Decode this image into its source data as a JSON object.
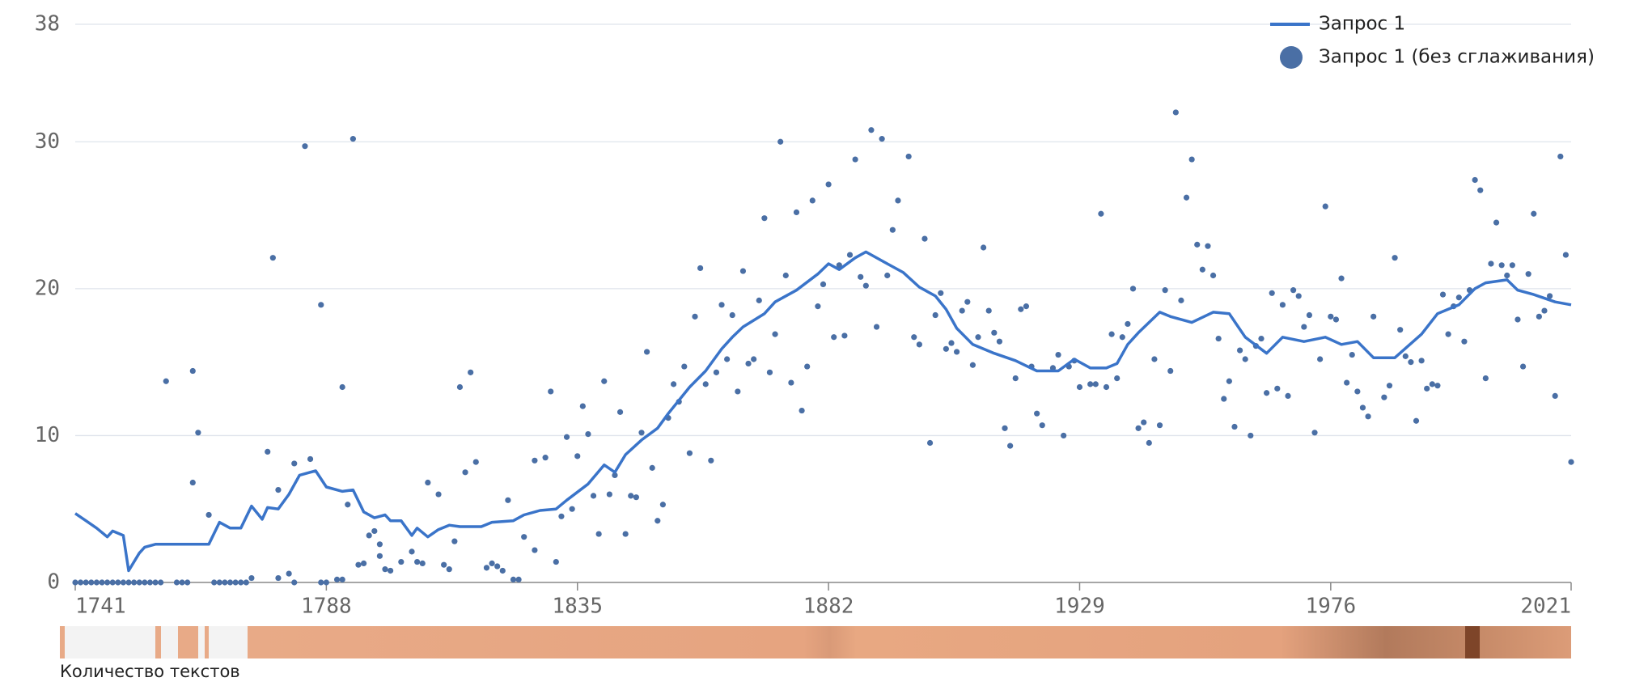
{
  "chart_data": {
    "type": "line",
    "xlim": [
      1741,
      2021
    ],
    "xticks": [
      1741,
      1788,
      1835,
      1882,
      1929,
      1976,
      2021
    ],
    "ylim": [
      0,
      38
    ],
    "yticks": [
      0,
      10,
      20,
      30,
      38
    ],
    "grid": true,
    "legend": "top-right",
    "strip_label": "Количество текстов",
    "series": [
      {
        "name": "Запрос 1",
        "type": "line",
        "color": "#3a74c9",
        "x": [
          1741,
          1743,
          1745,
          1747,
          1748,
          1750,
          1751,
          1753,
          1754,
          1756,
          1760,
          1766,
          1768,
          1770,
          1772,
          1774,
          1776,
          1777,
          1779,
          1781,
          1783,
          1786,
          1788,
          1791,
          1793,
          1795,
          1797,
          1799,
          1800,
          1802,
          1804,
          1805,
          1807,
          1809,
          1811,
          1813,
          1817,
          1819,
          1823,
          1825,
          1828,
          1831,
          1833,
          1837,
          1840,
          1842,
          1844,
          1847,
          1850,
          1852,
          1856,
          1859,
          1862,
          1864,
          1866,
          1870,
          1872,
          1876,
          1880,
          1882,
          1884,
          1887,
          1889,
          1893,
          1896,
          1899,
          1902,
          1904,
          1906,
          1909,
          1913,
          1917,
          1921,
          1925,
          1928,
          1931,
          1934,
          1936,
          1938,
          1940,
          1944,
          1946,
          1950,
          1954,
          1957,
          1960,
          1964,
          1967,
          1971,
          1975,
          1978,
          1981,
          1984,
          1988,
          1993,
          1996,
          2000,
          2003,
          2005,
          2009,
          2011,
          2014,
          2018,
          2021
        ],
        "values": [
          4.7,
          4.2,
          3.7,
          3.1,
          3.5,
          3.2,
          0.8,
          2.0,
          2.4,
          2.6,
          2.6,
          2.6,
          4.1,
          3.7,
          3.7,
          5.2,
          4.3,
          5.1,
          5.0,
          6.0,
          7.3,
          7.6,
          6.5,
          6.2,
          6.3,
          4.8,
          4.4,
          4.6,
          4.2,
          4.2,
          3.2,
          3.7,
          3.1,
          3.6,
          3.9,
          3.8,
          3.8,
          4.1,
          4.2,
          4.6,
          4.9,
          5.0,
          5.6,
          6.7,
          8.0,
          7.5,
          8.7,
          9.7,
          10.5,
          11.5,
          13.3,
          14.4,
          15.9,
          16.7,
          17.4,
          18.3,
          19.1,
          19.9,
          21.0,
          21.7,
          21.3,
          22.1,
          22.5,
          21.7,
          21.1,
          20.1,
          19.5,
          18.6,
          17.3,
          16.2,
          15.6,
          15.1,
          14.4,
          14.4,
          15.2,
          14.6,
          14.6,
          14.9,
          16.2,
          17.0,
          18.4,
          18.1,
          17.7,
          18.4,
          18.3,
          16.7,
          15.6,
          16.7,
          16.4,
          16.7,
          16.2,
          16.4,
          15.3,
          15.3,
          16.9,
          18.3,
          18.9,
          20.0,
          20.4,
          20.6,
          19.9,
          19.6,
          19.1,
          18.9
        ]
      },
      {
        "name": "Запрос 1 (без сглаживания)",
        "type": "scatter",
        "color": "#4a6fa5",
        "x": [
          1741,
          1742,
          1743,
          1744,
          1745,
          1746,
          1747,
          1748,
          1749,
          1750,
          1751,
          1752,
          1753,
          1754,
          1755,
          1756,
          1757,
          1758,
          1760,
          1761,
          1762,
          1763,
          1763,
          1764,
          1766,
          1767,
          1768,
          1769,
          1770,
          1771,
          1772,
          1773,
          1774,
          1777,
          1778,
          1779,
          1779,
          1781,
          1782,
          1782,
          1784,
          1785,
          1787,
          1787,
          1788,
          1790,
          1791,
          1791,
          1792,
          1793,
          1794,
          1795,
          1796,
          1797,
          1798,
          1798,
          1799,
          1800,
          1802,
          1804,
          1805,
          1806,
          1807,
          1809,
          1810,
          1811,
          1812,
          1813,
          1814,
          1815,
          1816,
          1818,
          1819,
          1820,
          1821,
          1822,
          1823,
          1824,
          1825,
          1827,
          1827,
          1829,
          1830,
          1831,
          1832,
          1833,
          1834,
          1835,
          1836,
          1837,
          1838,
          1839,
          1840,
          1841,
          1842,
          1843,
          1844,
          1845,
          1846,
          1847,
          1848,
          1849,
          1850,
          1851,
          1852,
          1853,
          1854,
          1855,
          1856,
          1857,
          1858,
          1859,
          1860,
          1861,
          1862,
          1863,
          1864,
          1865,
          1866,
          1867,
          1868,
          1869,
          1870,
          1871,
          1872,
          1873,
          1874,
          1875,
          1876,
          1877,
          1878,
          1879,
          1880,
          1881,
          1882,
          1883,
          1884,
          1885,
          1886,
          1887,
          1888,
          1889,
          1890,
          1891,
          1892,
          1893,
          1894,
          1895,
          1897,
          1898,
          1899,
          1900,
          1901,
          1902,
          1903,
          1904,
          1905,
          1906,
          1907,
          1908,
          1909,
          1910,
          1911,
          1912,
          1913,
          1914,
          1915,
          1916,
          1917,
          1918,
          1919,
          1920,
          1921,
          1922,
          1924,
          1925,
          1926,
          1927,
          1928,
          1929,
          1931,
          1932,
          1933,
          1934,
          1935,
          1936,
          1937,
          1938,
          1939,
          1940,
          1941,
          1942,
          1943,
          1944,
          1945,
          1946,
          1947,
          1948,
          1949,
          1950,
          1951,
          1952,
          1953,
          1954,
          1955,
          1956,
          1957,
          1958,
          1959,
          1960,
          1961,
          1962,
          1963,
          1964,
          1965,
          1966,
          1967,
          1968,
          1969,
          1970,
          1971,
          1972,
          1973,
          1974,
          1975,
          1976,
          1977,
          1978,
          1979,
          1980,
          1981,
          1982,
          1983,
          1984,
          1986,
          1987,
          1988,
          1989,
          1990,
          1991,
          1992,
          1993,
          1994,
          1995,
          1996,
          1997,
          1998,
          1999,
          2000,
          2001,
          2002,
          2003,
          2004,
          2005,
          2006,
          2007,
          2008,
          2009,
          2010,
          2011,
          2012,
          2013,
          2014,
          2015,
          2016,
          2017,
          2018,
          2019,
          2020,
          2021
        ],
        "values": [
          0,
          0,
          0,
          0,
          0,
          0,
          0,
          0,
          0,
          0,
          0,
          0,
          0,
          0,
          0,
          0,
          0,
          13.7,
          0,
          0,
          0,
          6.8,
          14.4,
          10.2,
          4.6,
          0,
          0,
          0,
          0,
          0,
          0,
          0,
          0.3,
          8.9,
          22.1,
          0.3,
          6.3,
          0.6,
          0,
          8.1,
          29.7,
          8.4,
          0,
          18.9,
          0,
          0.2,
          13.3,
          0.2,
          5.3,
          30.2,
          1.2,
          1.3,
          3.2,
          3.5,
          2.6,
          1.8,
          0.9,
          0.8,
          1.4,
          2.1,
          1.4,
          1.3,
          6.8,
          6.0,
          1.2,
          0.9,
          2.8,
          13.3,
          7.5,
          14.3,
          8.2,
          1.0,
          1.3,
          1.1,
          0.8,
          5.6,
          0.2,
          0.2,
          3.1,
          2.2,
          8.3,
          8.5,
          13.0,
          1.4,
          4.5,
          9.9,
          5.0,
          8.6,
          12.0,
          10.1,
          5.9,
          3.3,
          13.7,
          6.0,
          7.3,
          11.6,
          3.3,
          5.9,
          5.8,
          10.2,
          15.7,
          7.8,
          4.2,
          5.3,
          11.2,
          13.5,
          12.3,
          14.7,
          8.8,
          18.1,
          21.4,
          13.5,
          8.3,
          14.3,
          18.9,
          15.2,
          18.2,
          13.0,
          21.2,
          14.9,
          15.2,
          19.2,
          24.8,
          14.3,
          16.9,
          30.0,
          20.9,
          13.6,
          25.2,
          11.7,
          14.7,
          26.0,
          18.8,
          20.3,
          27.1,
          16.7,
          21.6,
          16.8,
          22.3,
          28.8,
          20.8,
          20.2,
          30.8,
          17.4,
          30.2,
          20.9,
          24.0,
          26.0,
          29.0,
          16.7,
          16.2,
          23.4,
          9.5,
          18.2,
          19.7,
          15.9,
          16.3,
          15.7,
          18.5,
          19.1,
          14.8,
          16.7,
          22.8,
          18.5,
          17.0,
          16.4,
          10.5,
          9.3,
          13.9,
          18.6,
          18.8,
          14.7,
          11.5,
          10.7,
          14.6,
          15.5,
          10.0,
          14.7,
          15.1,
          13.3,
          13.5,
          13.5,
          25.1,
          13.3,
          16.9,
          13.9,
          16.7,
          17.6,
          20.0,
          10.5,
          10.9,
          9.5,
          15.2,
          10.7,
          19.9,
          14.4,
          32.0,
          19.2,
          26.2,
          28.8,
          23.0,
          21.3,
          22.9,
          20.9,
          16.6,
          12.5,
          13.7,
          10.6,
          15.8,
          15.2,
          10.0,
          16.1,
          16.6,
          12.9,
          19.7,
          13.2,
          18.9,
          12.7,
          19.9,
          19.5,
          17.4,
          18.2,
          10.2,
          15.2,
          25.6,
          18.1,
          17.9,
          20.7,
          13.6,
          15.5,
          13.0,
          11.9,
          11.3,
          18.1,
          12.6,
          13.4,
          22.1,
          17.2,
          15.4,
          15.0,
          11.0,
          15.1,
          13.2,
          13.5,
          13.4,
          19.6,
          16.9,
          18.8,
          19.4,
          16.4,
          19.9,
          27.4,
          26.7,
          13.9,
          21.7,
          24.5,
          21.6,
          20.9,
          21.6,
          17.9,
          14.7,
          21.0,
          25.1,
          18.1,
          18.5,
          19.5,
          12.7,
          29.0,
          22.3,
          8.2
        ]
      }
    ]
  }
}
